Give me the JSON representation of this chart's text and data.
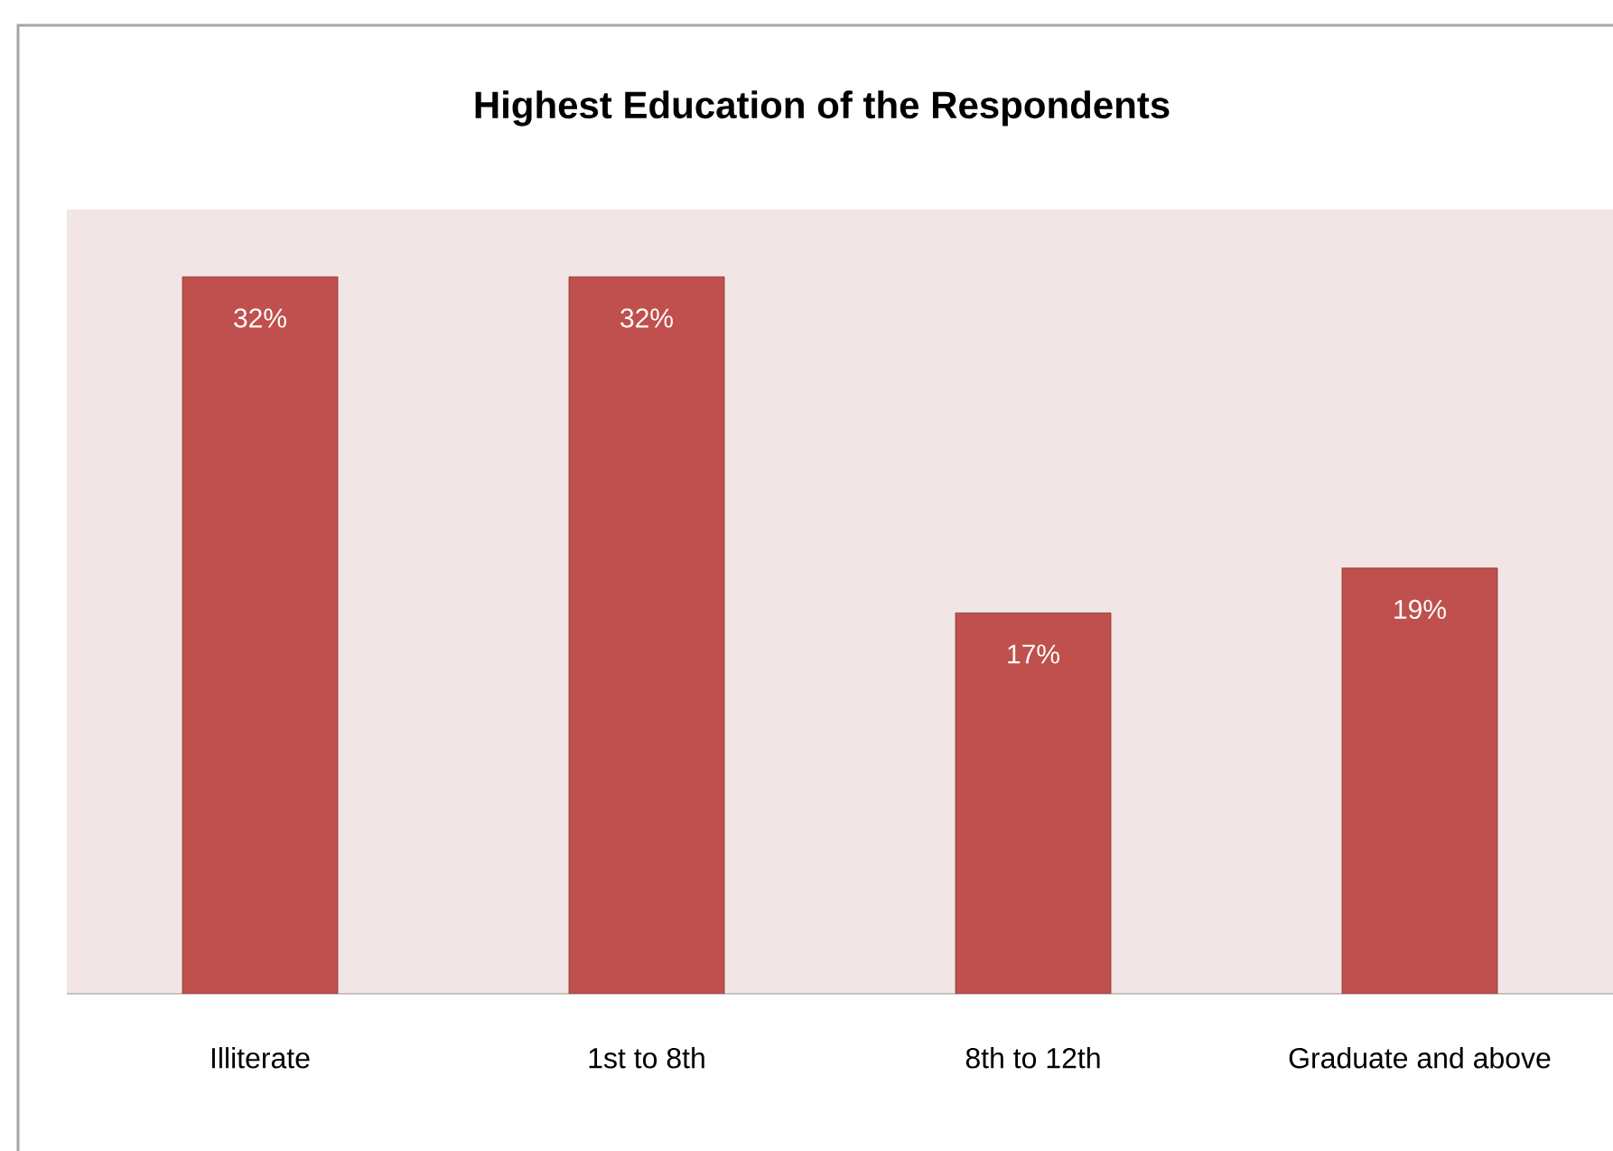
{
  "chart_data": {
    "type": "bar",
    "title": "Highest Education of the Respondents",
    "categories": [
      "Illiterate",
      "1st to 8th",
      "8th to 12th",
      "Graduate and above"
    ],
    "values": [
      32,
      32,
      17,
      19
    ],
    "value_labels": [
      "32%",
      "32%",
      "17%",
      "19%"
    ],
    "color": "#c0504d"
  }
}
